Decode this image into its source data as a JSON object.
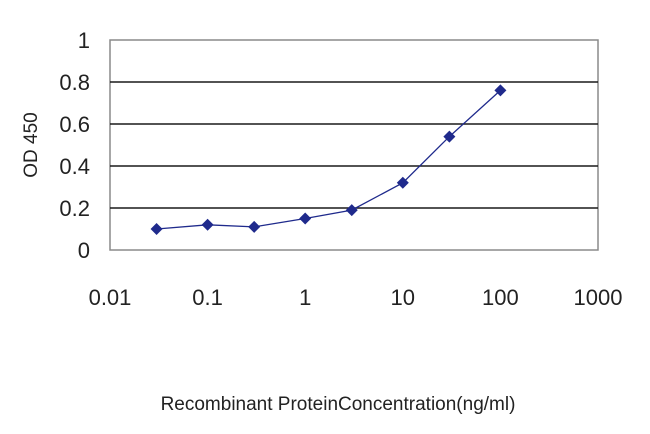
{
  "chart_data": {
    "type": "line",
    "xscale": "log",
    "xlim": [
      0.01,
      1000
    ],
    "ylim": [
      0,
      1
    ],
    "grid": "horizontal",
    "xlabel": "Recombinant ProteinConcentration(ng/ml)",
    "ylabel": "OD 450",
    "xticks": [
      "0.01",
      "0.1",
      "1",
      "10",
      "100",
      "1000"
    ],
    "yticks": [
      "0",
      "0.2",
      "0.4",
      "0.6",
      "0.8",
      "1"
    ],
    "series": [
      {
        "color": "#1f2a8c",
        "marker": "diamond",
        "x": [
          0.03,
          0.1,
          0.3,
          1,
          3,
          10,
          30,
          100
        ],
        "y": [
          0.1,
          0.12,
          0.11,
          0.15,
          0.19,
          0.32,
          0.54,
          0.76
        ]
      }
    ]
  }
}
